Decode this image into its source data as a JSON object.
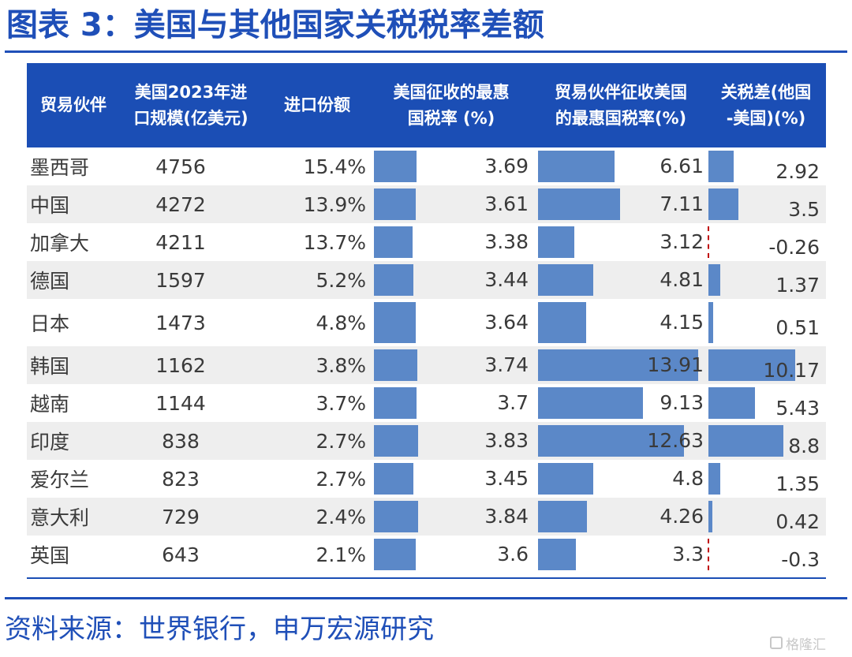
{
  "title": "图表 3：美国与其他国家关税税率差额",
  "source": "资料来源：世界银行，申万宏源研究",
  "watermark": "格隆汇",
  "chart_data": {
    "type": "table",
    "columns": [
      "贸易伙伴",
      "美国2023年进\n口规模(亿美元)",
      "进口份额",
      "美国征收的最惠\n国税率 (%)",
      "贸易伙伴征收美国\n的最惠国税率(%)",
      "关税差(他国\n-美国)(%)"
    ],
    "rows": [
      {
        "partner": "墨西哥",
        "imports": "4756",
        "share": "15.4%",
        "us_rate": "3.69",
        "partner_rate": "6.61",
        "diff": "2.92"
      },
      {
        "partner": "中国",
        "imports": "4272",
        "share": "13.9%",
        "us_rate": "3.61",
        "partner_rate": "7.11",
        "diff": "3.5"
      },
      {
        "partner": "加拿大",
        "imports": "4211",
        "share": "13.7%",
        "us_rate": "3.38",
        "partner_rate": "3.12",
        "diff": "-0.26"
      },
      {
        "partner": "德国",
        "imports": "1597",
        "share": "5.2%",
        "us_rate": "3.44",
        "partner_rate": "4.81",
        "diff": "1.37"
      },
      {
        "partner": "日本",
        "imports": "1473",
        "share": "4.8%",
        "us_rate": "3.64",
        "partner_rate": "4.15",
        "diff": "0.51"
      },
      {
        "partner": "韩国",
        "imports": "1162",
        "share": "3.8%",
        "us_rate": "3.74",
        "partner_rate": "13.91",
        "diff": "10.17"
      },
      {
        "partner": "越南",
        "imports": "1144",
        "share": "3.7%",
        "us_rate": "3.7",
        "partner_rate": "9.13",
        "diff": "5.43"
      },
      {
        "partner": "印度",
        "imports": "838",
        "share": "2.7%",
        "us_rate": "3.83",
        "partner_rate": "12.63",
        "diff": "8.8"
      },
      {
        "partner": "爱尔兰",
        "imports": "823",
        "share": "2.7%",
        "us_rate": "3.45",
        "partner_rate": "4.8",
        "diff": "1.35"
      },
      {
        "partner": "意大利",
        "imports": "729",
        "share": "2.4%",
        "us_rate": "3.84",
        "partner_rate": "4.26",
        "diff": "0.42"
      },
      {
        "partner": "英国",
        "imports": "643",
        "share": "2.1%",
        "us_rate": "3.6",
        "partner_rate": "3.3",
        "diff": "-0.3"
      }
    ],
    "bar_scales": {
      "us_rate": [
        0,
        14
      ],
      "partner_rate": [
        0,
        14
      ],
      "diff": [
        0,
        14
      ]
    },
    "colors": {
      "header": "#1b4eb5",
      "bar": "#5b88c8",
      "title": "#1f4fb8",
      "negative_marker": "#c00000",
      "row_alt": "#eeeeee"
    }
  }
}
